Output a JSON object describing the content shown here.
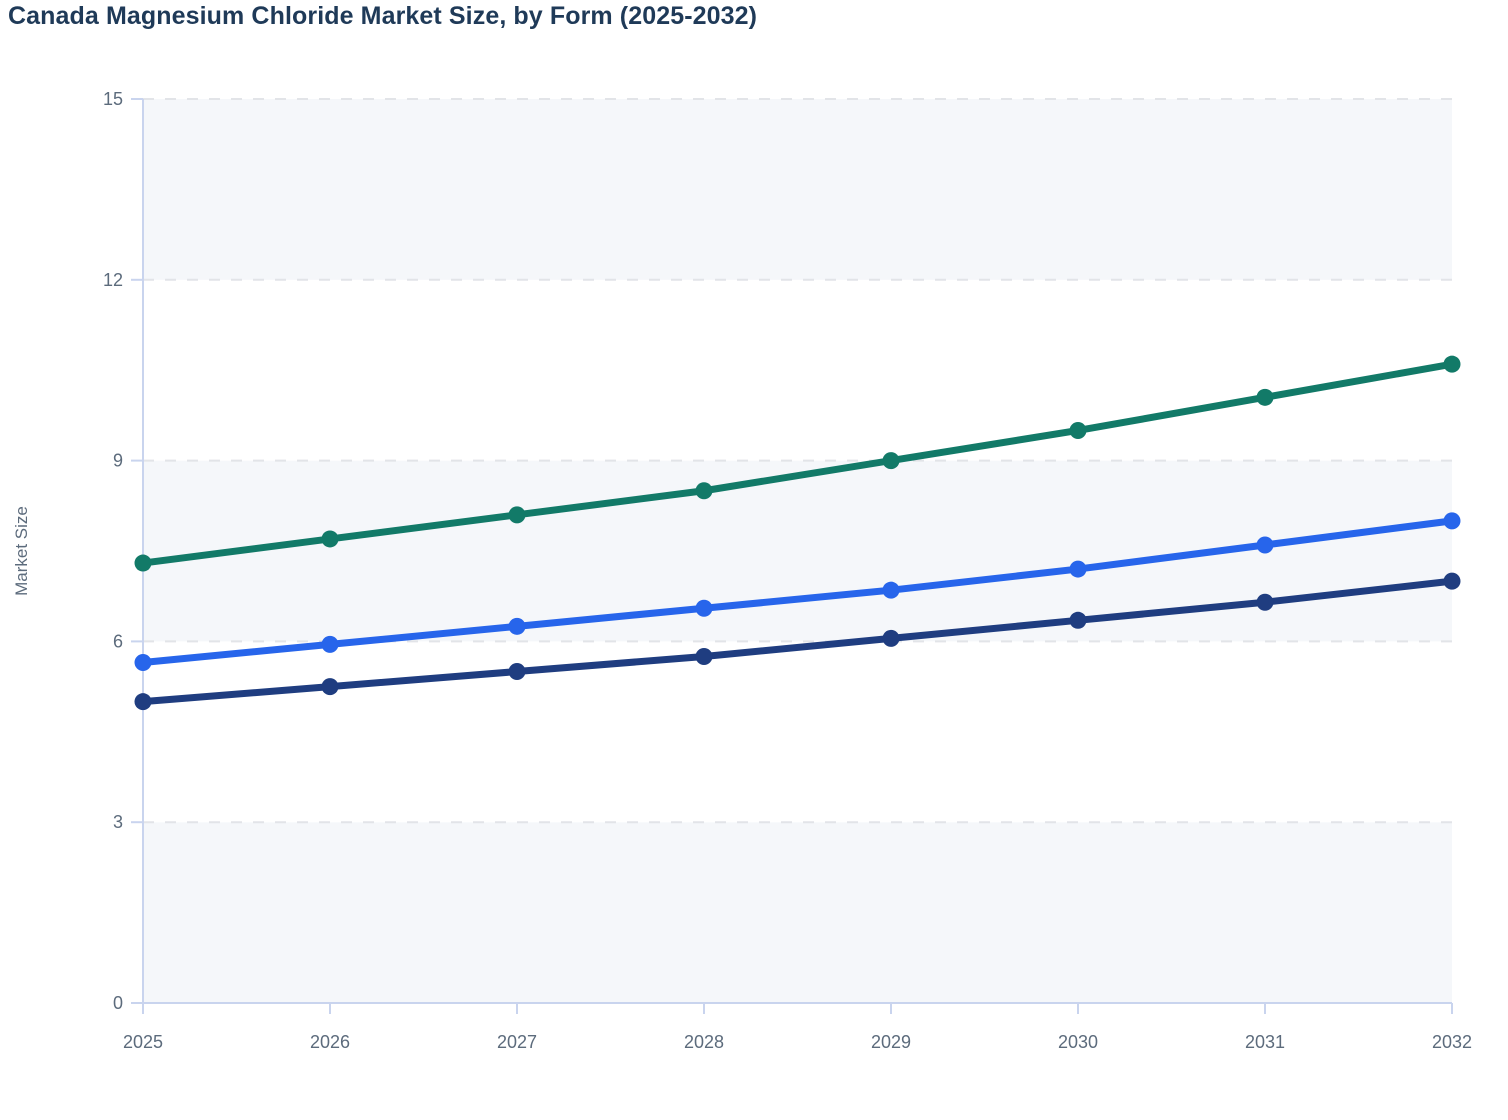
{
  "chart_data": {
    "type": "line",
    "title": "Canada Magnesium Chloride Market Size, by Form (2025-2032)",
    "categories": [
      "2025",
      "2026",
      "2027",
      "2028",
      "2029",
      "2030",
      "2031",
      "2032"
    ],
    "series": [
      {
        "color": "#127a68",
        "values": [
          7.3,
          7.7,
          8.1,
          8.5,
          9.0,
          9.5,
          10.05,
          10.6
        ]
      },
      {
        "color": "#2765eb",
        "values": [
          5.65,
          5.95,
          6.25,
          6.55,
          6.85,
          7.2,
          7.6,
          8.0
        ]
      },
      {
        "color": "#1f3d80",
        "values": [
          5.0,
          5.25,
          5.5,
          5.75,
          6.05,
          6.35,
          6.65,
          7.0
        ]
      }
    ],
    "xlabel": "",
    "ylabel": "Market Size",
    "ylim": [
      0,
      15
    ],
    "yticks": [
      0,
      3,
      6,
      9,
      12,
      15
    ],
    "grid": "horizontal-dashed",
    "legend": "none",
    "markers": true,
    "colors": {
      "band_alt": "#f5f7fa",
      "band": "#ffffff",
      "gridline": "#e2e4e8",
      "axis": "#c9d4ee",
      "tick_text": "#5c6b7c",
      "title_text": "#1f3a58"
    }
  }
}
